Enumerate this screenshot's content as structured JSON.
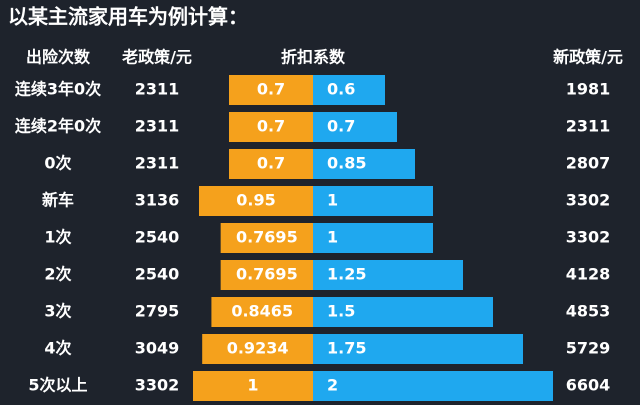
{
  "chart_data": {
    "type": "butterfly",
    "title": "以某主流家用车为例计算：",
    "category_header": "出险次数",
    "coefficient_header": "折扣系数",
    "categories": [
      "连续3年0次",
      "连续2年0次",
      "0次",
      "新车",
      "1次",
      "2次",
      "3次",
      "4次",
      "5次以上"
    ],
    "old_price": {
      "name": "老政策/元",
      "values": [
        2311,
        2311,
        2311,
        3136,
        2540,
        2540,
        2795,
        3049,
        3302
      ]
    },
    "new_price": {
      "name": "新政策/元",
      "values": [
        1981,
        2311,
        2807,
        3302,
        3302,
        4128,
        4853,
        5729,
        6604
      ]
    },
    "series": [
      {
        "color": "#f5a11c",
        "side": "left",
        "values": [
          0.7,
          0.7,
          0.7,
          0.95,
          0.7695,
          0.7695,
          0.8465,
          0.9234,
          1
        ]
      },
      {
        "color": "#1fa8ef",
        "side": "right",
        "values": [
          0.6,
          0.7,
          0.85,
          1,
          1,
          1.25,
          1.5,
          1.75,
          2
        ]
      }
    ]
  }
}
